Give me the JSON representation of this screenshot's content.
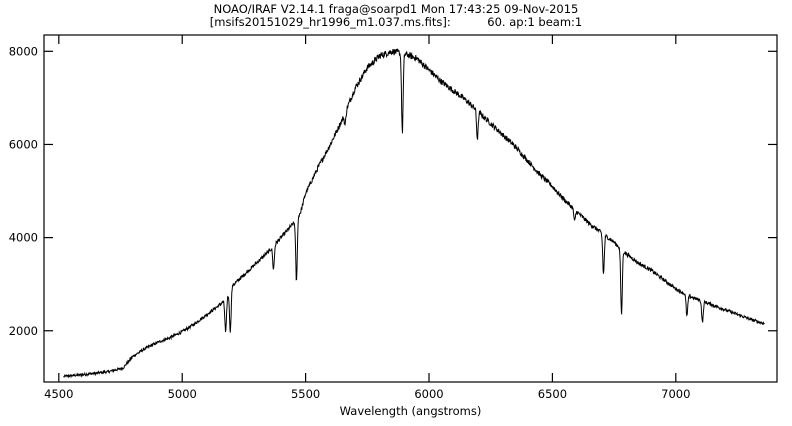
{
  "header": {
    "line1": "NOAO/IRAF V2.14.1 fraga@soarpd1 Mon 17:43:25 09-Nov-2015",
    "line2": "[msifs20151029_hr1996_m1.037.ms.fits]:          60. ap:1 beam:1"
  },
  "chart_data": {
    "type": "line",
    "title": "",
    "xlabel": "Wavelength (angstroms)",
    "ylabel": "",
    "xlim": [
      4440,
      7410
    ],
    "ylim": [
      900,
      8350
    ],
    "xticks": [
      4500,
      5000,
      5500,
      6000,
      6500,
      7000
    ],
    "yticks": [
      2000,
      4000,
      6000,
      8000
    ],
    "grid": false,
    "legend": "none",
    "line_color": "#000000",
    "series": [
      {
        "continuum": {
          "x": [
            4520,
            4600,
            4700,
            4760,
            4800,
            4850,
            4900,
            4950,
            5000,
            5050,
            5100,
            5150,
            5180,
            5200,
            5250,
            5300,
            5350,
            5400,
            5450,
            5480,
            5500,
            5550,
            5600,
            5650,
            5700,
            5750,
            5800,
            5850,
            5900,
            5950,
            6000,
            6050,
            6100,
            6150,
            6200,
            6250,
            6300,
            6350,
            6400,
            6450,
            6500,
            6550,
            6600,
            6650,
            6700,
            6750,
            6800,
            6850,
            6900,
            6950,
            7000,
            7050,
            7100,
            7150,
            7200,
            7250,
            7300,
            7360
          ],
          "y": [
            1020,
            1060,
            1120,
            1200,
            1450,
            1620,
            1750,
            1850,
            1980,
            2150,
            2350,
            2550,
            2680,
            2950,
            3200,
            3450,
            3700,
            4000,
            4300,
            4550,
            4950,
            5500,
            6000,
            6550,
            7200,
            7650,
            7900,
            8000,
            7950,
            7850,
            7600,
            7350,
            7150,
            6950,
            6700,
            6450,
            6200,
            5950,
            5650,
            5350,
            5100,
            4800,
            4550,
            4300,
            4100,
            3900,
            3650,
            3450,
            3300,
            3100,
            2900,
            2750,
            2650,
            2550,
            2450,
            2350,
            2250,
            2150
          ]
        },
        "absorption_lines": [
          {
            "x": 5176,
            "depth": 700
          },
          {
            "x": 5195,
            "depth": 900
          },
          {
            "x": 5370,
            "depth": 500
          },
          {
            "x": 5463,
            "depth": 1350
          },
          {
            "x": 5660,
            "depth": 250
          },
          {
            "x": 5892,
            "depth": 1700
          },
          {
            "x": 6196,
            "depth": 600
          },
          {
            "x": 6590,
            "depth": 250
          },
          {
            "x": 6707,
            "depth": 850
          },
          {
            "x": 6780,
            "depth": 1400
          },
          {
            "x": 7045,
            "depth": 450
          },
          {
            "x": 7108,
            "depth": 450
          }
        ]
      }
    ]
  }
}
